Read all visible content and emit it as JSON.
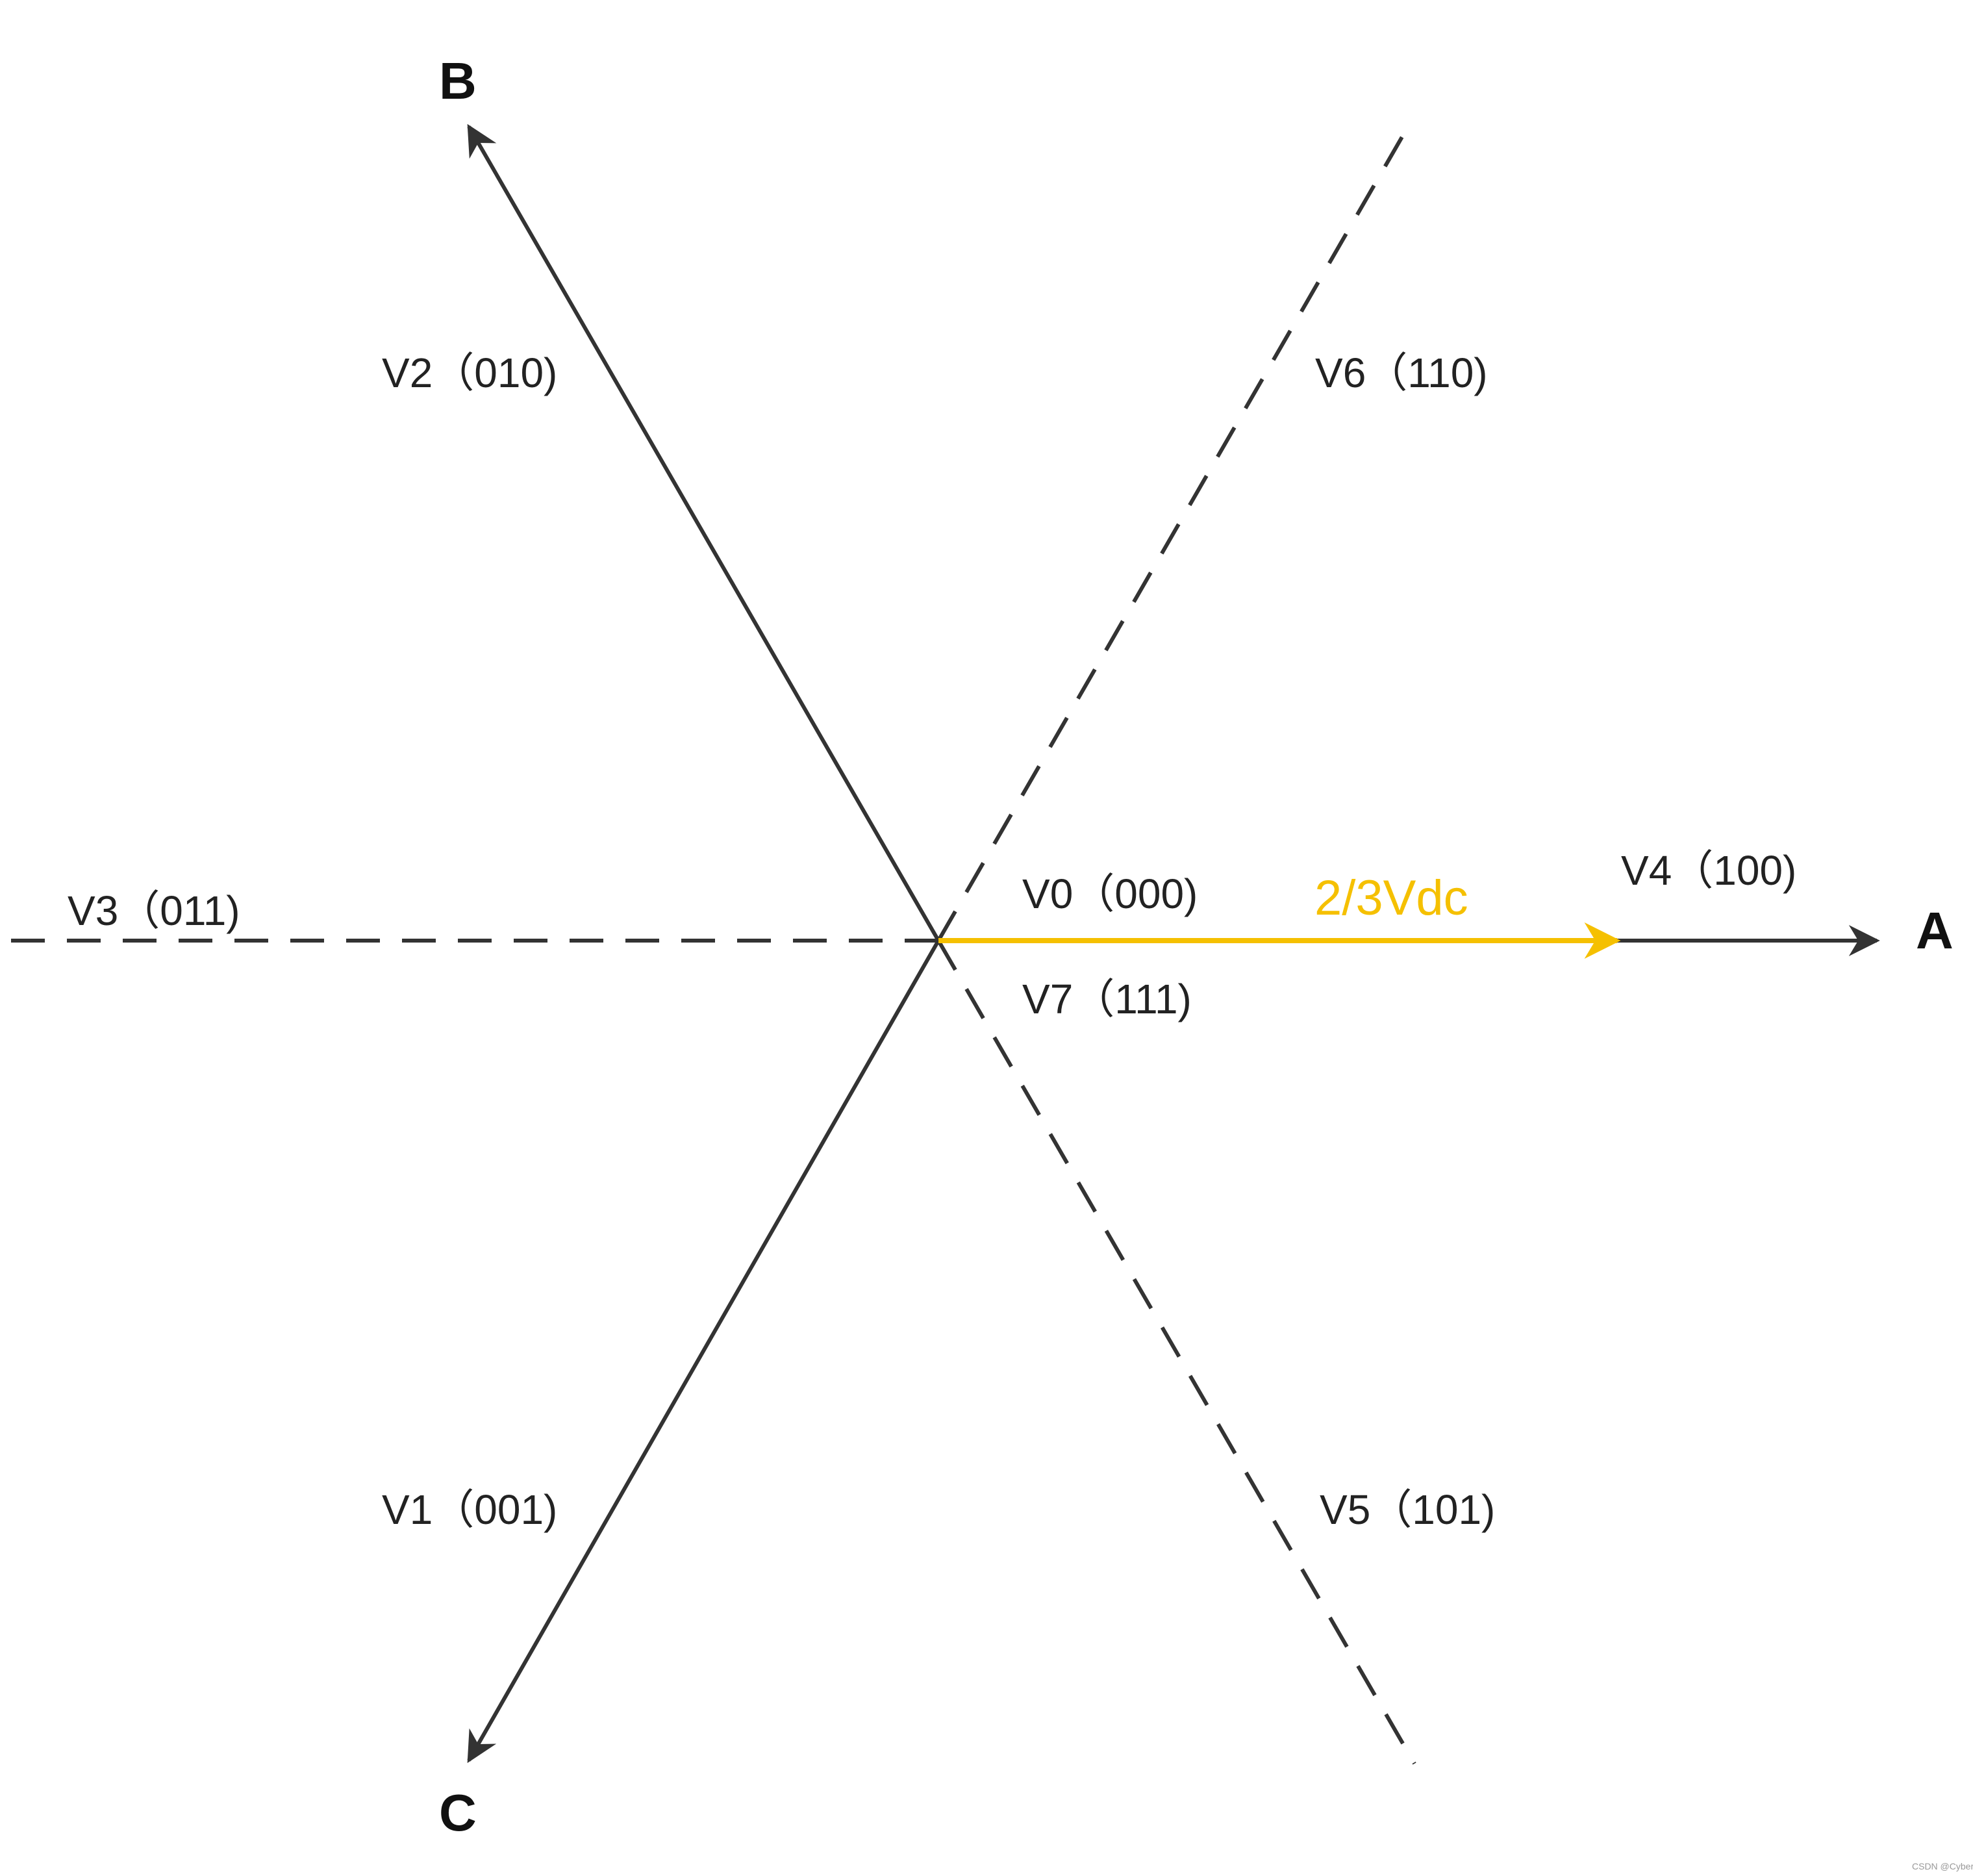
{
  "axes": {
    "a_label": "A",
    "b_label": "B",
    "c_label": "C"
  },
  "vectors": {
    "v0": "V0（000)",
    "v1": "V1（001)",
    "v2": "V2（010)",
    "v3": "V3（011)",
    "v4": "V4（100)",
    "v5": "V5（101)",
    "v6": "V6（110)",
    "v7": "V7（111)"
  },
  "amplitude_label": "2/3Vdc",
  "watermark": "CSDN @Cyber.L",
  "colors": {
    "line": "#333333",
    "accent": "#f5c000",
    "background": "#ffffff"
  }
}
